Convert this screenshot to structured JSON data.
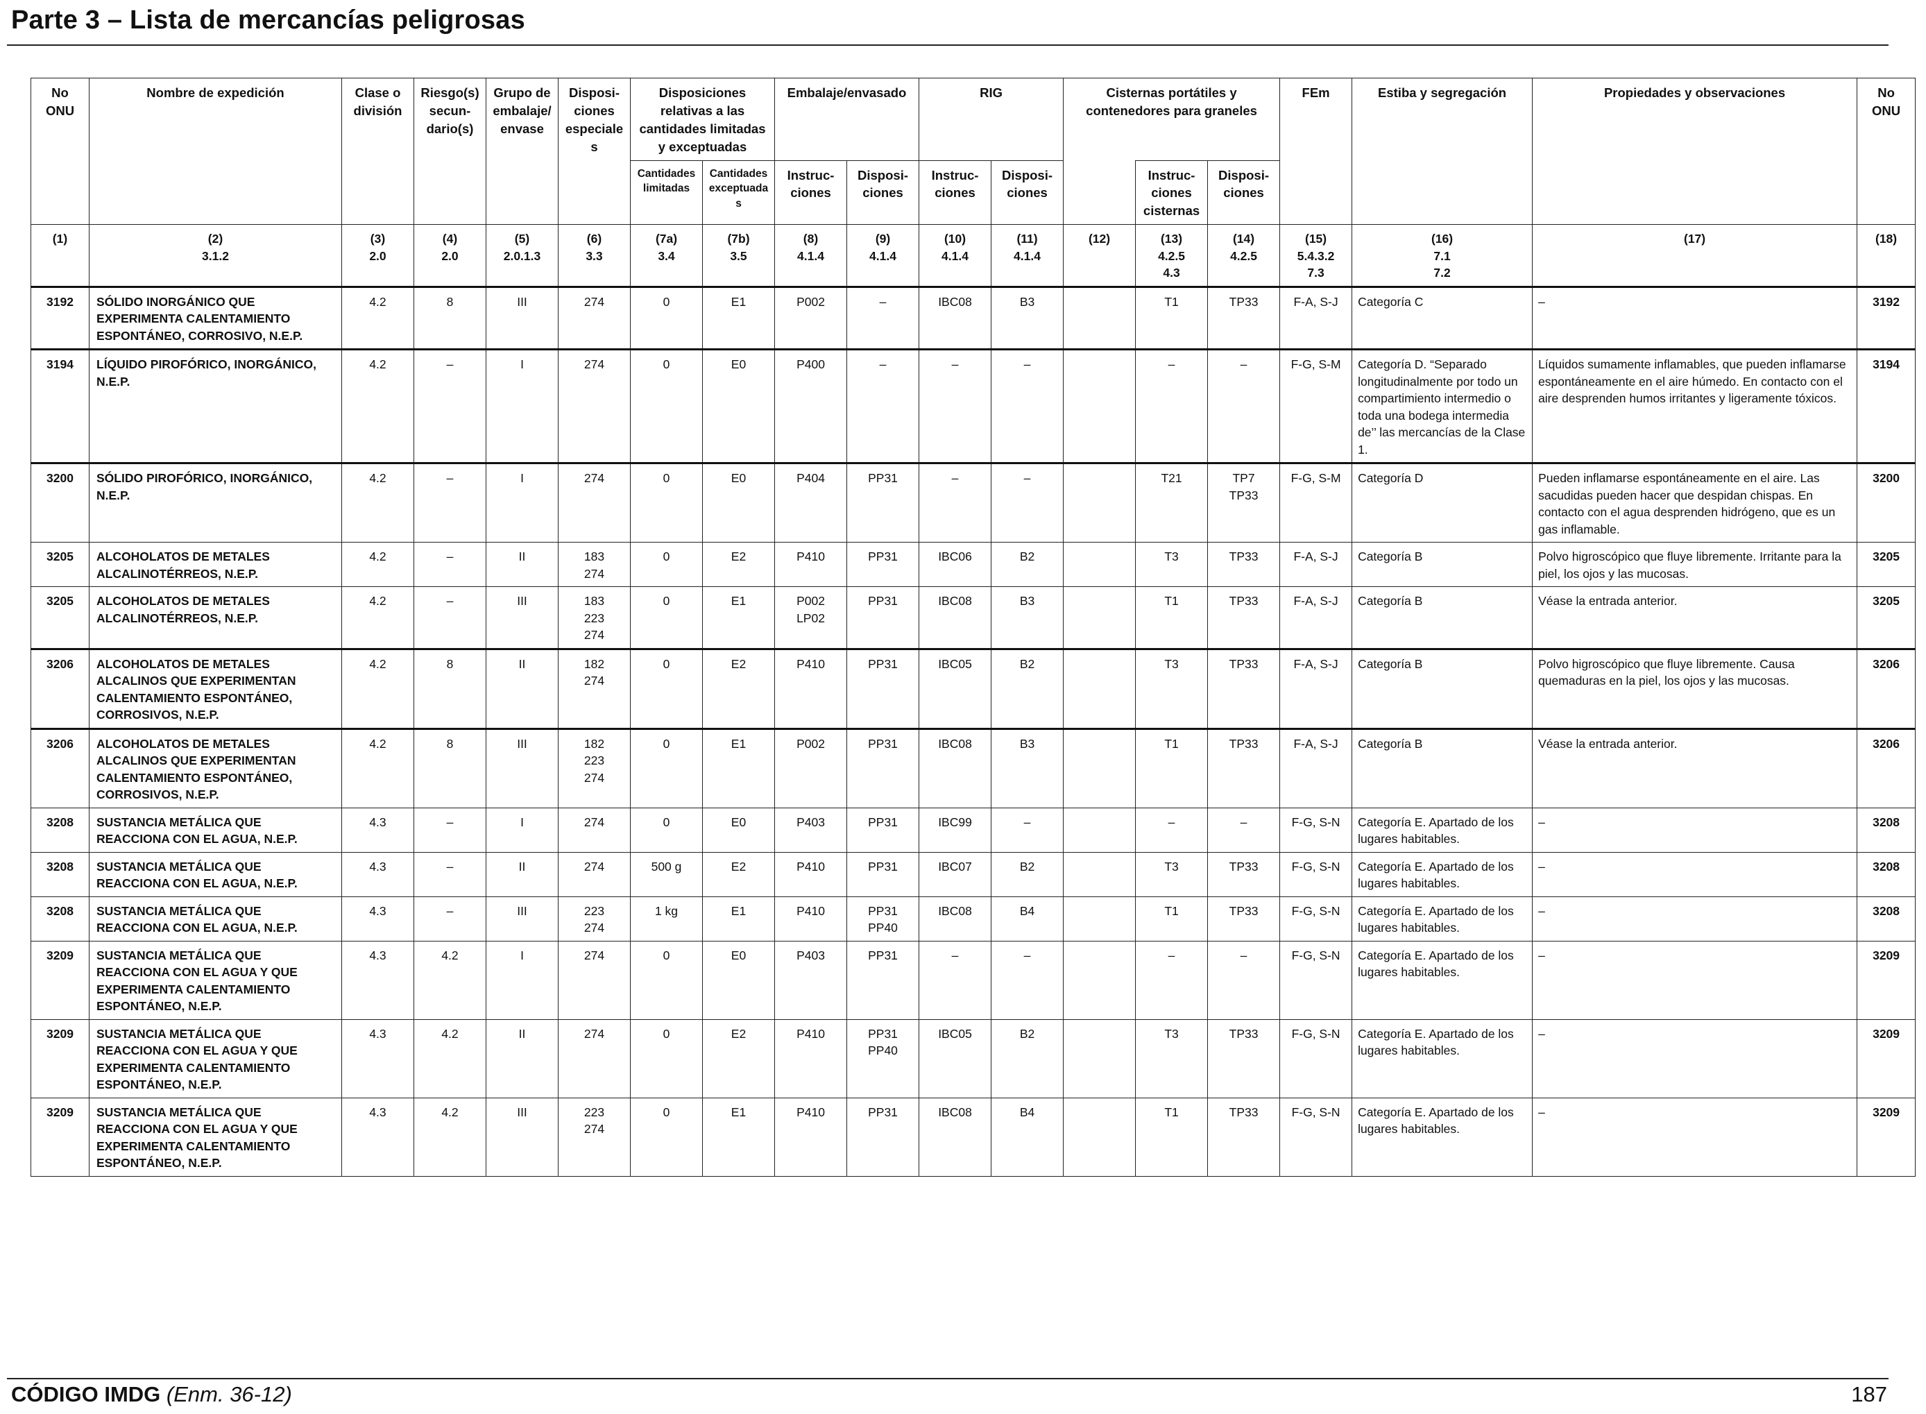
{
  "header": {
    "title": "Parte 3 – Lista de mercancías peligrosas"
  },
  "footer": {
    "code_bold": "CÓDIGO IMDG",
    "code_italic": "(Enm. 36-12)",
    "page_number": "187"
  },
  "table": {
    "headers": {
      "c1": "No ONU",
      "c2": "Nombre de expedición",
      "c3": "Clase o división",
      "c4": "Riesgo(s) secun- dario(s)",
      "c5": "Grupo de embalaje/ envase",
      "c6": "Disposi- ciones especiales",
      "c7": "Disposiciones relativas a las cantidades limitadas y exceptuadas",
      "c7a": "Cantidades limitadas",
      "c7b": "Cantidades exceptuadas",
      "c8_9": "Embalaje/envasado",
      "c8": "Instruc- ciones",
      "c9": "Disposi- ciones",
      "c10_11": "RIG",
      "c10": "Instruc- ciones",
      "c11": "Disposi- ciones",
      "c12_14": "Cisternas portátiles y contenedores para graneles",
      "c13": "Instruc- ciones cisternas",
      "c14": "Disposi- ciones",
      "c15": "FEm",
      "c16": "Estiba y segregación",
      "c17": "Propiedades y observaciones",
      "c18": "No ONU"
    },
    "refs": [
      [
        "(1)"
      ],
      [
        "(2)",
        "3.1.2"
      ],
      [
        "(3)",
        "2.0"
      ],
      [
        "(4)",
        "2.0"
      ],
      [
        "(5)",
        "2.0.1.3"
      ],
      [
        "(6)",
        "3.3"
      ],
      [
        "(7a)",
        "3.4"
      ],
      [
        "(7b)",
        "3.5"
      ],
      [
        "(8)",
        "4.1.4"
      ],
      [
        "(9)",
        "4.1.4"
      ],
      [
        "(10)",
        "4.1.4"
      ],
      [
        "(11)",
        "4.1.4"
      ],
      [
        "(12)"
      ],
      [
        "(13)",
        "4.2.5",
        "4.3"
      ],
      [
        "(14)",
        "4.2.5"
      ],
      [
        "(15)",
        "5.4.3.2",
        "7.3"
      ],
      [
        "(16)",
        "7.1",
        "7.2"
      ],
      [
        "(17)"
      ],
      [
        "(18)"
      ]
    ],
    "rows": [
      {
        "un": "3192",
        "name": "SÓLIDO INORGÁNICO QUE EXPERIMENTA CALENTAMIENTO ESPONTÁNEO, CORROSIVO, N.E.P.",
        "cls": "4.2",
        "sub": "8",
        "pg": "III",
        "sp": [
          "274"
        ],
        "lq": "0",
        "eq": "E1",
        "pi": [
          "P002"
        ],
        "pp": [
          "–"
        ],
        "ibc": "IBC08",
        "ibcp": "B3",
        "c12": "",
        "tank": "T1",
        "tankp": [
          "TP33"
        ],
        "ems": "F-A, S-J",
        "stow": "Categoría C",
        "prop": "–"
      },
      {
        "un": "3194",
        "name": "LÍQUIDO PIROFÓRICO, INORGÁNICO, N.E.P.",
        "cls": "4.2",
        "sub": "–",
        "pg": "I",
        "sp": [
          "274"
        ],
        "lq": "0",
        "eq": "E0",
        "pi": [
          "P400"
        ],
        "pp": [
          "–"
        ],
        "ibc": "–",
        "ibcp": "–",
        "c12": "",
        "tank": "–",
        "tankp": [
          "–"
        ],
        "ems": "F-G, S-M",
        "stow": "Categoría D. “Separado longitudinalmente por todo un compartimiento intermedio o toda una bodega intermedia de’’ las mercancías de la Clase 1.",
        "prop": "Líquidos sumamente inflamables, que pueden inflamarse espontáneamente en el aire húmedo. En contacto con el aire desprenden humos irritantes y ligeramente tóxicos."
      },
      {
        "un": "3200",
        "name": "SÓLIDO PIROFÓRICO, INORGÁNICO, N.E.P.",
        "cls": "4.2",
        "sub": "–",
        "pg": "I",
        "sp": [
          "274"
        ],
        "lq": "0",
        "eq": "E0",
        "pi": [
          "P404"
        ],
        "pp": [
          "PP31"
        ],
        "ibc": "–",
        "ibcp": "–",
        "c12": "",
        "tank": "T21",
        "tankp": [
          "TP7",
          "TP33"
        ],
        "ems": "F-G, S-M",
        "stow": "Categoría D",
        "prop": "Pueden inflamarse espontáneamente en el aire. Las sacudidas pueden hacer que despidan chispas. En contacto con el agua desprenden hidrógeno, que es un gas inflamable."
      },
      {
        "un": "3205",
        "name": "ALCOHOLATOS DE METALES ALCALINOTÉRREOS, N.E.P.",
        "cls": "4.2",
        "sub": "–",
        "pg": "II",
        "sp": [
          "183",
          "274"
        ],
        "lq": "0",
        "eq": "E2",
        "pi": [
          "P410"
        ],
        "pp": [
          "PP31"
        ],
        "ibc": "IBC06",
        "ibcp": "B2",
        "c12": "",
        "tank": "T3",
        "tankp": [
          "TP33"
        ],
        "ems": "F-A, S-J",
        "stow": "Categoría B",
        "prop": "Polvo higroscópico que fluye libremente. Irritante para la piel, los ojos y las mucosas."
      },
      {
        "un": "3205",
        "name": "ALCOHOLATOS DE METALES ALCALINOTÉRREOS, N.E.P.",
        "cls": "4.2",
        "sub": "–",
        "pg": "III",
        "sp": [
          "183",
          "223",
          "274"
        ],
        "lq": "0",
        "eq": "E1",
        "pi": [
          "P002",
          "LP02"
        ],
        "pp": [
          "PP31"
        ],
        "ibc": "IBC08",
        "ibcp": "B3",
        "c12": "",
        "tank": "T1",
        "tankp": [
          "TP33"
        ],
        "ems": "F-A, S-J",
        "stow": "Categoría B",
        "prop": "Véase la entrada anterior."
      },
      {
        "un": "3206",
        "name": "ALCOHOLATOS DE METALES ALCALINOS QUE EXPERIMENTAN CALENTAMIENTO ESPONTÁNEO, CORROSIVOS, N.E.P.",
        "cls": "4.2",
        "sub": "8",
        "pg": "II",
        "sp": [
          "182",
          "274"
        ],
        "lq": "0",
        "eq": "E2",
        "pi": [
          "P410"
        ],
        "pp": [
          "PP31"
        ],
        "ibc": "IBC05",
        "ibcp": "B2",
        "c12": "",
        "tank": "T3",
        "tankp": [
          "TP33"
        ],
        "ems": "F-A, S-J",
        "stow": "Categoría B",
        "prop": "Polvo higroscópico que fluye libremente. Causa quemaduras en la piel, los ojos y las mucosas."
      },
      {
        "un": "3206",
        "name": "ALCOHOLATOS DE METALES ALCALINOS QUE EXPERIMENTAN CALENTAMIENTO ESPONTÁNEO, CORROSIVOS, N.E.P.",
        "cls": "4.2",
        "sub": "8",
        "pg": "III",
        "sp": [
          "182",
          "223",
          "274"
        ],
        "lq": "0",
        "eq": "E1",
        "pi": [
          "P002"
        ],
        "pp": [
          "PP31"
        ],
        "ibc": "IBC08",
        "ibcp": "B3",
        "c12": "",
        "tank": "T1",
        "tankp": [
          "TP33"
        ],
        "ems": "F-A, S-J",
        "stow": "Categoría B",
        "prop": "Véase la entrada anterior."
      },
      {
        "un": "3208",
        "name": "SUSTANCIA METÁLICA QUE REACCIONA CON EL AGUA, N.E.P.",
        "cls": "4.3",
        "sub": "–",
        "pg": "I",
        "sp": [
          "274"
        ],
        "lq": "0",
        "eq": "E0",
        "pi": [
          "P403"
        ],
        "pp": [
          "PP31"
        ],
        "ibc": "IBC99",
        "ibcp": "–",
        "c12": "",
        "tank": "–",
        "tankp": [
          "–"
        ],
        "ems": "F-G, S-N",
        "stow": "Categoría E. Apartado de los lugares habitables.",
        "prop": "–"
      },
      {
        "un": "3208",
        "name": "SUSTANCIA METÁLICA QUE REACCIONA CON EL AGUA, N.E.P.",
        "cls": "4.3",
        "sub": "–",
        "pg": "II",
        "sp": [
          "274"
        ],
        "lq": "500 g",
        "eq": "E2",
        "pi": [
          "P410"
        ],
        "pp": [
          "PP31"
        ],
        "ibc": "IBC07",
        "ibcp": "B2",
        "c12": "",
        "tank": "T3",
        "tankp": [
          "TP33"
        ],
        "ems": "F-G, S-N",
        "stow": "Categoría E. Apartado de los lugares habitables.",
        "prop": "–"
      },
      {
        "un": "3208",
        "name": "SUSTANCIA METÁLICA QUE REACCIONA CON EL AGUA, N.E.P.",
        "cls": "4.3",
        "sub": "–",
        "pg": "III",
        "sp": [
          "223",
          "274"
        ],
        "lq": "1 kg",
        "eq": "E1",
        "pi": [
          "P410"
        ],
        "pp": [
          "PP31",
          "PP40"
        ],
        "ibc": "IBC08",
        "ibcp": "B4",
        "c12": "",
        "tank": "T1",
        "tankp": [
          "TP33"
        ],
        "ems": "F-G, S-N",
        "stow": "Categoría E. Apartado de los lugares habitables.",
        "prop": "–"
      },
      {
        "un": "3209",
        "name": "SUSTANCIA METÁLICA QUE REACCIONA CON EL AGUA Y QUE EXPERIMENTA CALENTAMIENTO ESPONTÁNEO, N.E.P.",
        "cls": "4.3",
        "sub": "4.2",
        "pg": "I",
        "sp": [
          "274"
        ],
        "lq": "0",
        "eq": "E0",
        "pi": [
          "P403"
        ],
        "pp": [
          "PP31"
        ],
        "ibc": "–",
        "ibcp": "–",
        "c12": "",
        "tank": "–",
        "tankp": [
          "–"
        ],
        "ems": "F-G, S-N",
        "stow": "Categoría E. Apartado de los lugares habitables.",
        "prop": "–"
      },
      {
        "un": "3209",
        "name": "SUSTANCIA METÁLICA QUE REACCIONA CON EL AGUA Y QUE EXPERIMENTA CALENTAMIENTO ESPONTÁNEO, N.E.P.",
        "cls": "4.3",
        "sub": "4.2",
        "pg": "II",
        "sp": [
          "274"
        ],
        "lq": "0",
        "eq": "E2",
        "pi": [
          "P410"
        ],
        "pp": [
          "PP31",
          "PP40"
        ],
        "ibc": "IBC05",
        "ibcp": "B2",
        "c12": "",
        "tank": "T3",
        "tankp": [
          "TP33"
        ],
        "ems": "F-G, S-N",
        "stow": "Categoría E. Apartado de los lugares habitables.",
        "prop": "–"
      },
      {
        "un": "3209",
        "name": "SUSTANCIA METÁLICA QUE REACCIONA CON EL AGUA Y QUE EXPERIMENTA CALENTAMIENTO ESPONTÁNEO, N.E.P.",
        "cls": "4.3",
        "sub": "4.2",
        "pg": "III",
        "sp": [
          "223",
          "274"
        ],
        "lq": "0",
        "eq": "E1",
        "pi": [
          "P410"
        ],
        "pp": [
          "PP31"
        ],
        "ibc": "IBC08",
        "ibcp": "B4",
        "c12": "",
        "tank": "T1",
        "tankp": [
          "TP33"
        ],
        "ems": "F-G, S-N",
        "stow": "Categoría E. Apartado de los lugares habitables.",
        "prop": "–"
      }
    ]
  }
}
